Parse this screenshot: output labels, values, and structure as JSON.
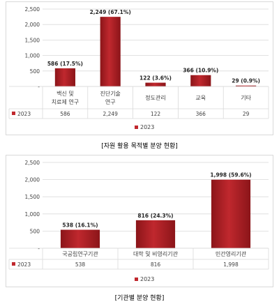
{
  "colors": {
    "bar": "#c0282e",
    "bar_dark": "#8b1519",
    "grid": "#d9d9d9",
    "axis_text": "#404040"
  },
  "chart_data": [
    {
      "type": "bar",
      "categories": [
        [
          "백신 및",
          "치료제 연구"
        ],
        [
          "진단기술",
          "연구"
        ],
        [
          "정도관리"
        ],
        [
          "교육"
        ],
        [
          "기타"
        ]
      ],
      "values": [
        586,
        2249,
        122,
        366,
        29
      ],
      "data_labels": [
        "586 (17.5%)",
        "2,249 (67.1%)",
        "122 (3.6%)",
        "366 (10.9%)",
        "29 (0.9%)"
      ],
      "yticks": [
        "-",
        "500",
        "1,000",
        "1,500",
        "2,000",
        "2,500"
      ],
      "ylim": [
        0,
        2500
      ],
      "table_values": [
        "586",
        "2,249",
        "122",
        "366",
        "29"
      ],
      "series": [
        {
          "name": "2023",
          "values": [
            586,
            2249,
            122,
            366,
            29
          ]
        }
      ],
      "legend": "2023",
      "legend_position": "bottom",
      "caption": "[자원 활용 목적별 분양 현황]"
    },
    {
      "type": "bar",
      "categories": [
        [
          "국공립연구기관"
        ],
        [
          "대학 및 비영리기관"
        ],
        [
          "민간영리기관"
        ]
      ],
      "values": [
        538,
        816,
        1998
      ],
      "data_labels": [
        "538 (16.1%)",
        "816 (24.3%)",
        "1,998 (59.6%)"
      ],
      "yticks": [
        "-",
        "500",
        "1,000",
        "1,500",
        "2,000",
        "2,500"
      ],
      "ylim": [
        0,
        2500
      ],
      "table_values": [
        "538",
        "816",
        "1,998"
      ],
      "series": [
        {
          "name": "2023",
          "values": [
            538,
            816,
            1998
          ]
        }
      ],
      "legend": "2023",
      "legend_position": "bottom",
      "caption": "[기관별 분양 현황]"
    }
  ]
}
